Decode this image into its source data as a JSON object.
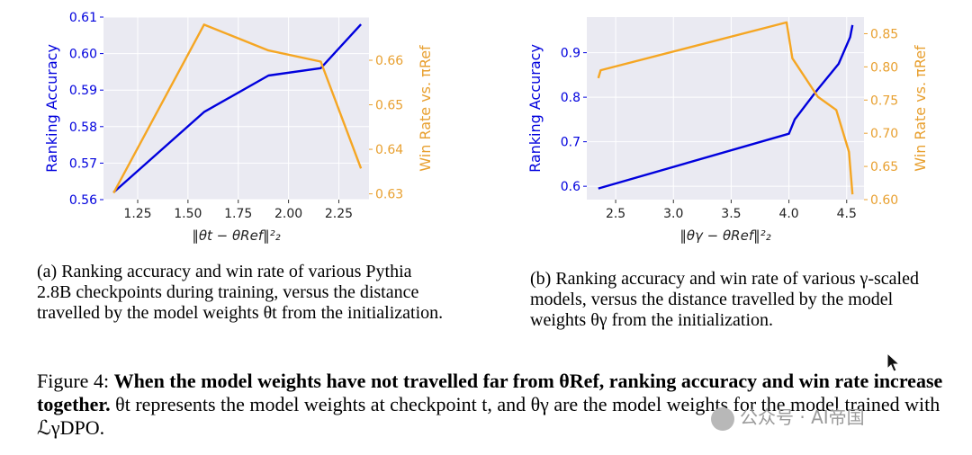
{
  "chart_data": [
    {
      "type": "line",
      "panel": "a",
      "xlabel": "‖θt − θRef‖²₂",
      "xlim": [
        1.08,
        2.4
      ],
      "xticks": [
        1.25,
        1.5,
        1.75,
        2.0,
        2.25
      ],
      "xtick_labels": [
        "1.25",
        "1.50",
        "1.75",
        "2.00",
        "2.25"
      ],
      "ylabel_left": "Ranking Accuracy",
      "ylim_left": [
        0.56,
        0.61
      ],
      "yticks_left": [
        0.56,
        0.57,
        0.58,
        0.59,
        0.6,
        0.61
      ],
      "ytick_labels_left": [
        "0.56",
        "0.57",
        "0.58",
        "0.59",
        "0.60",
        "0.61"
      ],
      "ylabel_right": "Win Rate vs. πRef",
      "ylim_right": [
        0.6287,
        0.6697
      ],
      "yticks_right": [
        0.63,
        0.64,
        0.65,
        0.66
      ],
      "ytick_labels_right": [
        "0.63",
        "0.64",
        "0.65",
        "0.66"
      ],
      "series": [
        {
          "name": "Ranking Accuracy",
          "axis": "left",
          "color": "#0000dd",
          "x": [
            1.13,
            1.58,
            1.9,
            2.16,
            2.36
          ],
          "y": [
            0.562,
            0.584,
            0.594,
            0.596,
            0.608
          ]
        },
        {
          "name": "Win Rate vs. πRef",
          "axis": "right",
          "color": "#f5a623",
          "x": [
            1.13,
            1.58,
            1.9,
            2.16,
            2.36
          ],
          "y": [
            0.6302,
            0.668,
            0.6622,
            0.6597,
            0.6357
          ]
        }
      ]
    },
    {
      "type": "line",
      "panel": "b",
      "xlabel": "‖θγ − θRef‖²₂",
      "xlim": [
        2.25,
        4.65
      ],
      "xticks": [
        2.5,
        3.0,
        3.5,
        4.0,
        4.5
      ],
      "xtick_labels": [
        "2.5",
        "3.0",
        "3.5",
        "4.0",
        "4.5"
      ],
      "ylabel_left": "Ranking Accuracy",
      "ylim_left": [
        0.57,
        0.98
      ],
      "yticks_left": [
        0.6,
        0.7,
        0.8,
        0.9
      ],
      "ytick_labels_left": [
        "0.6",
        "0.7",
        "0.8",
        "0.9"
      ],
      "ylabel_right": "Win Rate vs. πRef",
      "ylim_right": [
        0.6,
        0.875
      ],
      "yticks_right": [
        0.6,
        0.65,
        0.7,
        0.75,
        0.8,
        0.85
      ],
      "ytick_labels_right": [
        "0.60",
        "0.65",
        "0.70",
        "0.75",
        "0.80",
        "0.85"
      ],
      "series": [
        {
          "name": "Ranking Accuracy",
          "axis": "left",
          "color": "#0000dd",
          "x": [
            2.35,
            4.0,
            4.05,
            4.25,
            4.43,
            4.53,
            4.55
          ],
          "y": [
            0.595,
            0.718,
            0.75,
            0.818,
            0.875,
            0.935,
            0.962
          ]
        },
        {
          "name": "Win Rate vs. πRef",
          "axis": "right",
          "color": "#f5a623",
          "x": [
            2.35,
            2.37,
            3.98,
            4.03,
            4.25,
            4.41,
            4.52,
            4.55
          ],
          "y": [
            0.783,
            0.795,
            0.867,
            0.813,
            0.755,
            0.735,
            0.672,
            0.608
          ]
        }
      ]
    }
  ],
  "captions": {
    "a": "(a) Ranking accuracy and win rate of various Pythia 2.8B checkpoints during training, versus the distance travelled by the model weights θt from the initialization.",
    "b": "(b) Ranking accuracy and win rate of various γ-scaled models, versus the distance travelled by the model weights θγ from the initialization."
  },
  "figure_caption": {
    "label": "Figure 4: ",
    "bold": "When the model weights have not travelled far from θRef, ranking accuracy and win rate increase together.",
    "rest": " θt represents the model weights at checkpoint t, and θγ are the model weights for the model trained with ℒγDPO."
  },
  "watermark": "公众号 · AI帝国"
}
